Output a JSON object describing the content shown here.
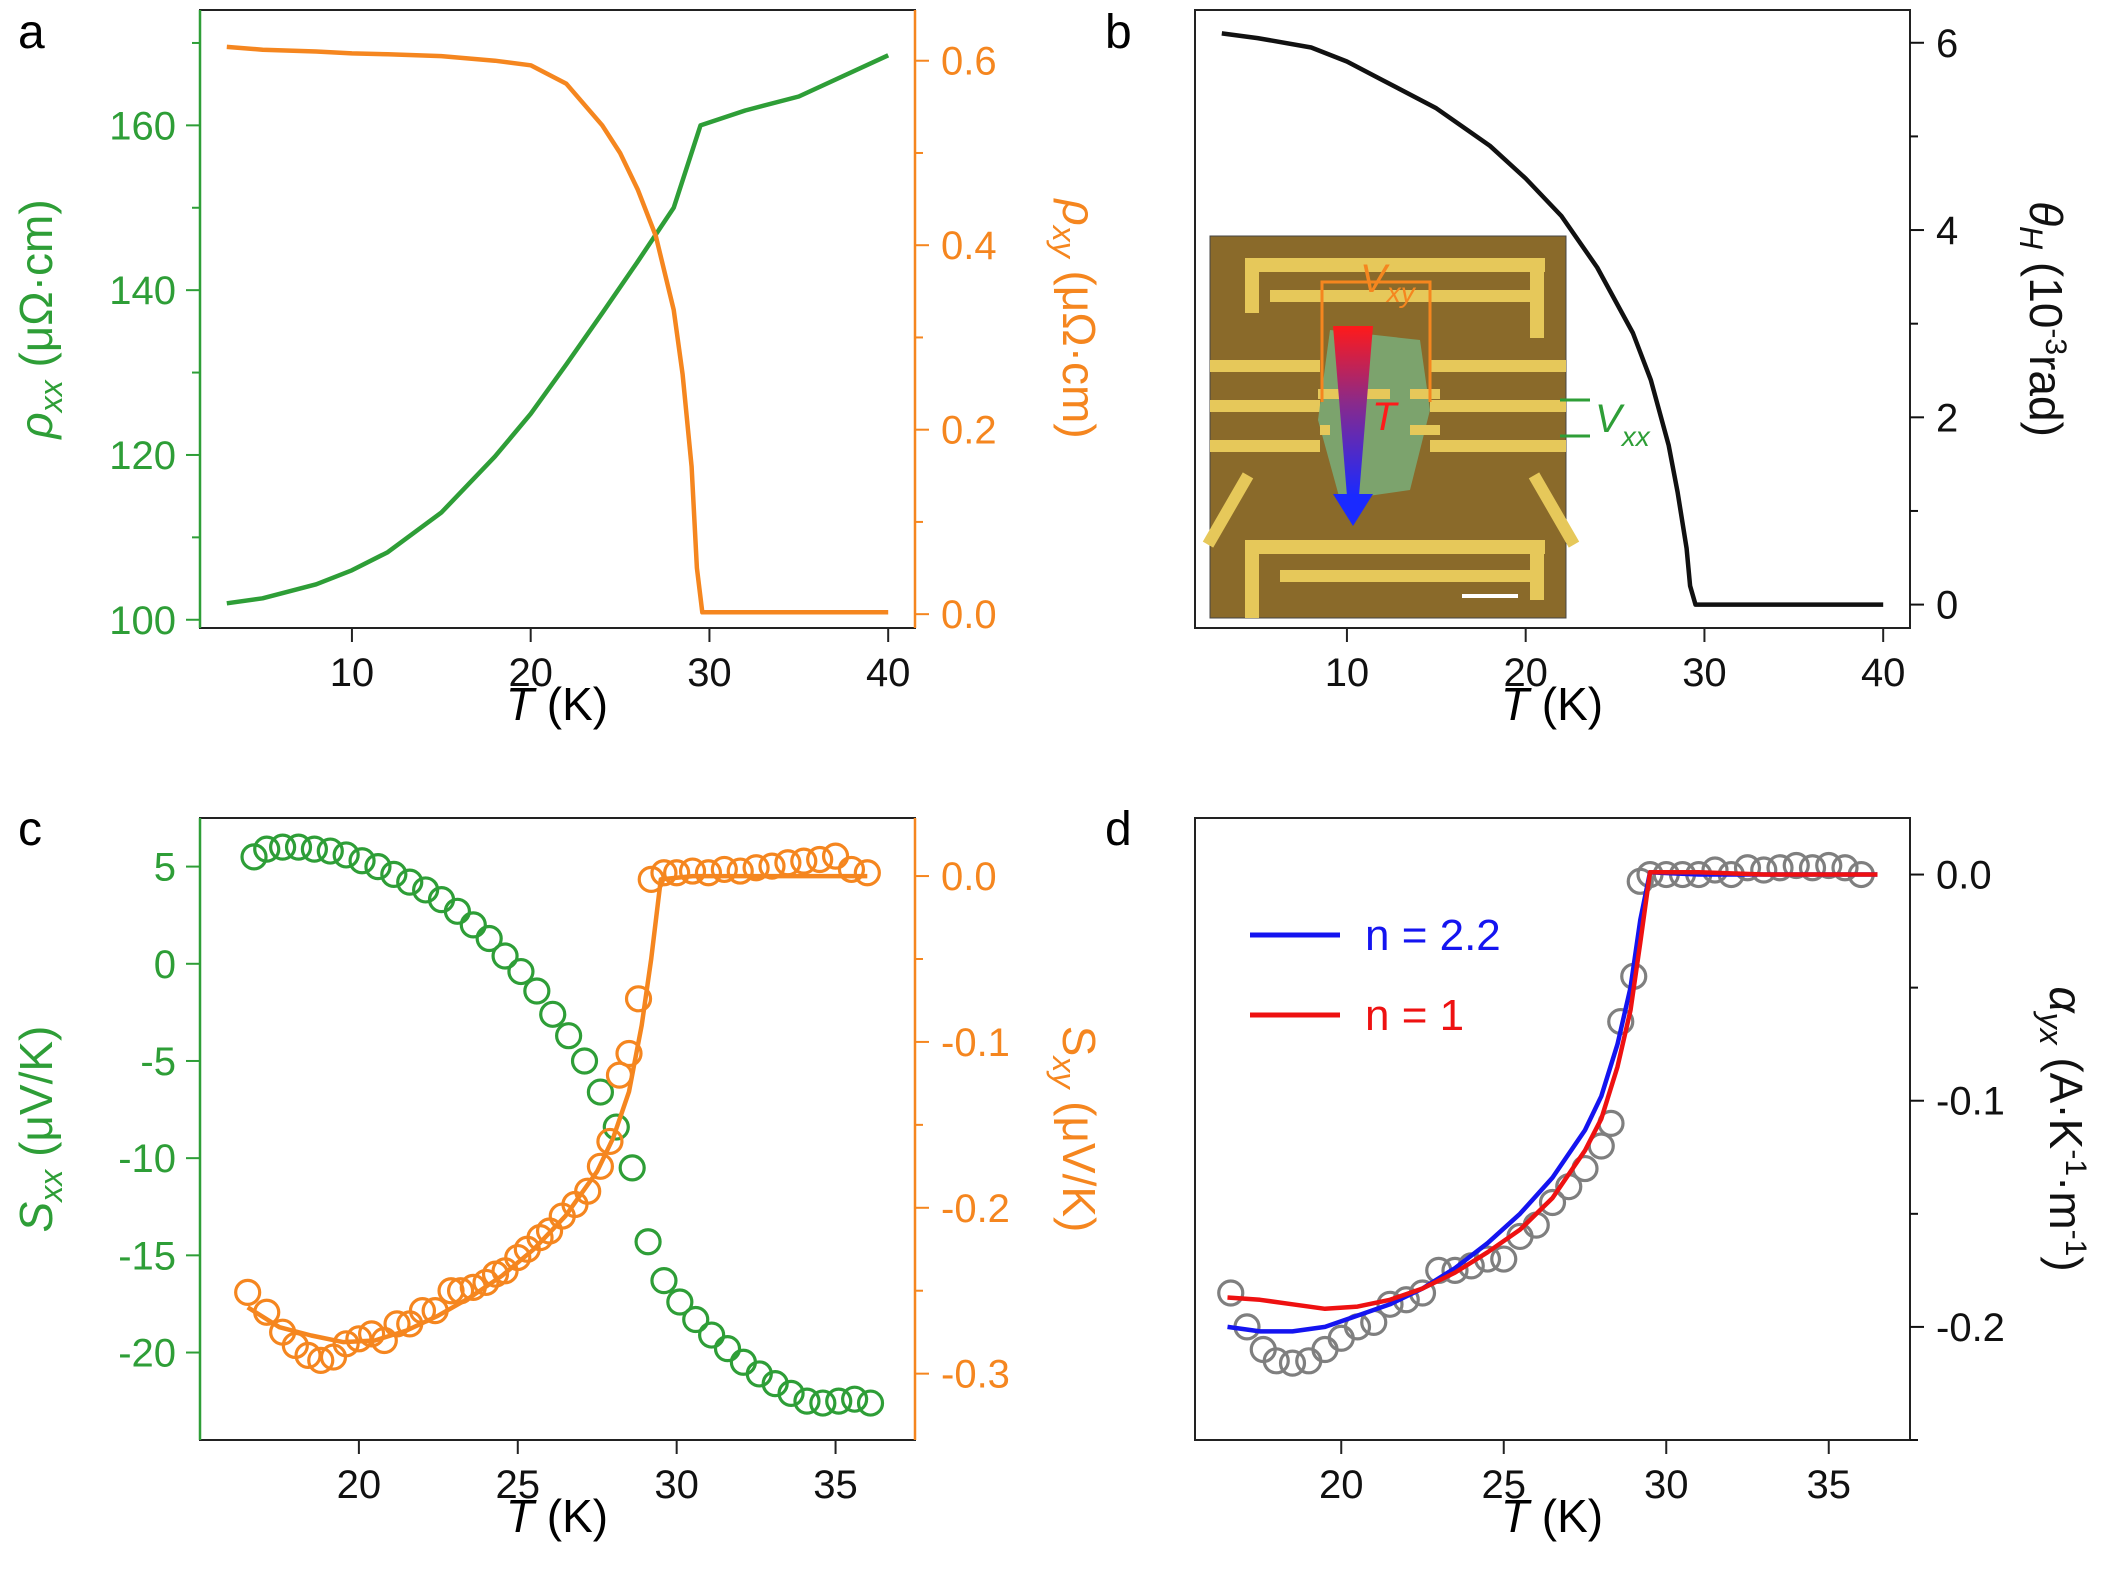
{
  "figure": {
    "panel_labels": [
      "a",
      "b",
      "c",
      "d"
    ]
  },
  "colors": {
    "green": "#2e9e37",
    "orange": "#f5861f",
    "black": "#111111",
    "blue": "#1414f0",
    "red": "#ee1111",
    "gray": "#7f7f7f"
  },
  "chart_data": [
    {
      "panel": "a",
      "type": "line",
      "title": "",
      "x": {
        "label_italic": "T",
        "label_rest": " (K)",
        "lim": [
          1.5,
          41.5
        ],
        "ticks": [
          10,
          20,
          30,
          40
        ]
      },
      "left_axis": {
        "label": "ρxx (μΩ·cm)",
        "lim": [
          99,
          174
        ],
        "ticks": [
          100,
          120,
          140,
          160
        ],
        "tick_labels": [
          "100",
          "120",
          "140",
          "160"
        ],
        "minor": [
          110,
          130,
          150,
          170
        ]
      },
      "right_axis": {
        "label": "ρxy (μΩ·cm)",
        "lim": [
          -0.015,
          0.655
        ],
        "ticks": [
          0.0,
          0.2,
          0.4,
          0.6
        ],
        "tick_labels": [
          "0.0",
          "0.2",
          "0.4",
          "0.6"
        ],
        "minor": [
          0.1,
          0.3,
          0.5
        ]
      },
      "series": [
        {
          "name": "ρxx",
          "axis": "left",
          "color": "#2e9e37",
          "x": [
            3,
            5,
            8,
            10,
            12,
            15,
            18,
            20,
            22,
            24,
            26,
            28,
            29.5,
            32,
            35,
            40
          ],
          "y": [
            102,
            102.6,
            104.3,
            106,
            108.2,
            113,
            119.8,
            125,
            131,
            137.2,
            143.5,
            150,
            160,
            161.8,
            163.5,
            168.5
          ]
        },
        {
          "name": "ρxy",
          "axis": "right",
          "color": "#f5861f",
          "x": [
            3,
            5,
            8,
            10,
            12,
            15,
            18,
            20,
            22,
            24,
            25,
            26,
            27,
            28,
            28.5,
            29,
            29.3,
            29.6,
            32,
            35,
            40
          ],
          "y": [
            0.615,
            0.612,
            0.61,
            0.608,
            0.607,
            0.605,
            0.6,
            0.595,
            0.575,
            0.53,
            0.5,
            0.46,
            0.41,
            0.33,
            0.26,
            0.16,
            0.05,
            0.002,
            0.002,
            0.002,
            0.002
          ]
        }
      ]
    },
    {
      "panel": "b",
      "type": "line",
      "title": "",
      "x": {
        "label_italic": "T",
        "label_rest": " (K)",
        "lim": [
          1.5,
          41.5
        ],
        "ticks": [
          10,
          20,
          30,
          40
        ]
      },
      "right_axis": {
        "label": "θH (10-3rad)",
        "lim": [
          -0.25,
          6.35
        ],
        "ticks": [
          0,
          2,
          4,
          6
        ],
        "tick_labels": [
          "0",
          "2",
          "4",
          "6"
        ],
        "minor": [
          1,
          3,
          5
        ]
      },
      "series": [
        {
          "name": "θH",
          "axis": "right",
          "color": "#111111",
          "x": [
            3,
            5,
            8,
            10,
            12,
            15,
            18,
            20,
            22,
            24,
            26,
            27,
            28,
            28.5,
            29,
            29.2,
            29.5,
            32,
            35,
            40
          ],
          "y": [
            6.1,
            6.05,
            5.95,
            5.8,
            5.6,
            5.3,
            4.9,
            4.55,
            4.15,
            3.6,
            2.9,
            2.4,
            1.7,
            1.2,
            0.6,
            0.2,
            0.0,
            0.0,
            0.0,
            0.0
          ]
        }
      ],
      "inset": {
        "vxy": "V",
        "vxy_sub": "xy",
        "vxx": "V",
        "vxx_sub": "xx",
        "t": "T"
      }
    },
    {
      "panel": "c",
      "type": "scatter",
      "title": "",
      "x": {
        "label_italic": "T",
        "label_rest": " (K)",
        "lim": [
          15,
          37.5
        ],
        "ticks": [
          20,
          25,
          30,
          35
        ]
      },
      "left_axis": {
        "label": "Sxx (μV/K)",
        "lim": [
          -24.5,
          7.5
        ],
        "ticks": [
          -20,
          -15,
          -10,
          -5,
          0,
          5
        ],
        "tick_labels": [
          "-20",
          "-15",
          "-10",
          "-5",
          "0",
          "5"
        ],
        "minor": []
      },
      "right_axis": {
        "label": "Sxy (μV/K)",
        "lim": [
          -0.34,
          0.035
        ],
        "ticks": [
          -0.3,
          -0.2,
          -0.1,
          0.0
        ],
        "tick_labels": [
          "-0.3",
          "-0.2",
          "-0.1",
          "0.0"
        ],
        "minor": [
          -0.25,
          -0.15,
          -0.05
        ]
      },
      "series": [
        {
          "name": "Sxx",
          "axis": "left",
          "marker": "circle",
          "color": "#2e9e37",
          "x": [
            16.7,
            17.1,
            17.6,
            18.1,
            18.6,
            19.1,
            19.6,
            20.1,
            20.6,
            21.1,
            21.6,
            22.1,
            22.6,
            23.1,
            23.6,
            24.1,
            24.6,
            25.1,
            25.6,
            26.1,
            26.6,
            27.1,
            27.6,
            28.1,
            28.6,
            29.1,
            29.6,
            30.1,
            30.6,
            31.1,
            31.6,
            32.1,
            32.6,
            33.1,
            33.6,
            34.1,
            34.6,
            35.1,
            35.6,
            36.1
          ],
          "y": [
            5.5,
            5.9,
            6.0,
            6.0,
            5.9,
            5.8,
            5.6,
            5.3,
            5.0,
            4.6,
            4.2,
            3.8,
            3.3,
            2.7,
            2.0,
            1.3,
            0.4,
            -0.4,
            -1.4,
            -2.6,
            -3.7,
            -5.0,
            -6.6,
            -8.4,
            -10.5,
            -14.3,
            -16.3,
            -17.4,
            -18.3,
            -19.1,
            -19.8,
            -20.5,
            -21.1,
            -21.6,
            -22.1,
            -22.5,
            -22.6,
            -22.5,
            -22.4,
            -22.6
          ]
        },
        {
          "name": "Sxy",
          "axis": "right",
          "marker": "circle",
          "color": "#f5861f",
          "x": [
            16.5,
            17.1,
            17.6,
            18.0,
            18.4,
            18.8,
            19.2,
            19.6,
            20.0,
            20.4,
            20.8,
            21.2,
            21.6,
            22.0,
            22.4,
            22.9,
            23.2,
            23.6,
            24.0,
            24.3,
            24.6,
            25.0,
            25.3,
            25.7,
            26.0,
            26.4,
            26.8,
            27.2,
            27.6,
            27.9,
            28.2,
            28.5,
            28.8,
            29.2,
            29.6,
            30.0,
            30.5,
            31.0,
            31.5,
            32.0,
            32.5,
            33.0,
            33.5,
            34.0,
            34.5,
            35.0,
            35.5,
            36.0
          ],
          "y": [
            -0.251,
            -0.263,
            -0.275,
            -0.283,
            -0.289,
            -0.292,
            -0.29,
            -0.282,
            -0.279,
            -0.276,
            -0.28,
            -0.27,
            -0.27,
            -0.262,
            -0.262,
            -0.25,
            -0.25,
            -0.248,
            -0.245,
            -0.24,
            -0.238,
            -0.23,
            -0.225,
            -0.218,
            -0.214,
            -0.205,
            -0.198,
            -0.19,
            -0.175,
            -0.16,
            -0.12,
            -0.107,
            -0.074,
            -0.002,
            0.002,
            0.002,
            0.003,
            0.002,
            0.004,
            0.003,
            0.005,
            0.006,
            0.008,
            0.009,
            0.01,
            0.012,
            0.004,
            0.002
          ]
        },
        {
          "name": "Sxy fit",
          "axis": "right",
          "marker": "line",
          "color": "#f5861f",
          "x": [
            16.5,
            17.5,
            18.5,
            19.5,
            20.5,
            21.5,
            22.5,
            23.5,
            24.5,
            25.5,
            26.5,
            27.5,
            28.0,
            28.5,
            28.9,
            29.2,
            29.5,
            30.5,
            32.0,
            34.0,
            36.0
          ],
          "y": [
            -0.26,
            -0.272,
            -0.277,
            -0.281,
            -0.28,
            -0.274,
            -0.265,
            -0.254,
            -0.241,
            -0.225,
            -0.205,
            -0.178,
            -0.158,
            -0.13,
            -0.09,
            -0.05,
            -0.002,
            0.0,
            0.0,
            0.0,
            0.0
          ]
        }
      ]
    },
    {
      "panel": "d",
      "type": "scatter",
      "title": "",
      "x": {
        "label_italic": "T",
        "label_rest": " (K)",
        "lim": [
          15.5,
          37.5
        ],
        "ticks": [
          20,
          25,
          30,
          35
        ]
      },
      "right_axis": {
        "label": "αyx (A·K-1·m-1)",
        "lim": [
          -0.25,
          0.025
        ],
        "ticks": [
          -0.2,
          -0.1,
          0.0
        ],
        "tick_labels": [
          "-0.2",
          "-0.1",
          "0.0"
        ],
        "minor": [
          -0.25,
          -0.15,
          -0.05
        ]
      },
      "legend": [
        "n = 2.2",
        "n = 1"
      ],
      "series": [
        {
          "name": "αyx",
          "axis": "right",
          "marker": "circle",
          "color": "#7f7f7f",
          "x": [
            16.6,
            17.1,
            17.6,
            18.0,
            18.5,
            19.0,
            19.5,
            20.0,
            20.5,
            21.0,
            21.5,
            22.0,
            22.5,
            23.0,
            23.5,
            24.0,
            24.5,
            25.0,
            25.5,
            26.0,
            26.5,
            27.0,
            27.5,
            28.0,
            28.3,
            28.6,
            29.0,
            29.2,
            29.5,
            30.0,
            30.5,
            31.0,
            31.5,
            32.0,
            32.5,
            33.0,
            33.5,
            34.0,
            34.5,
            35.0,
            35.5,
            36.0
          ],
          "y": [
            -0.185,
            -0.2,
            -0.21,
            -0.215,
            -0.216,
            -0.215,
            -0.21,
            -0.205,
            -0.2,
            -0.198,
            -0.19,
            -0.188,
            -0.185,
            -0.175,
            -0.175,
            -0.173,
            -0.17,
            -0.17,
            -0.16,
            -0.155,
            -0.145,
            -0.138,
            -0.13,
            -0.12,
            -0.11,
            -0.065,
            -0.045,
            -0.003,
            0.0,
            0.0,
            0.0,
            0.0,
            0.002,
            0.0,
            0.003,
            0.002,
            0.003,
            0.004,
            0.003,
            0.004,
            0.003,
            0.0
          ]
        },
        {
          "name": "n = 2.2",
          "axis": "right",
          "marker": "line",
          "color": "#1414f0",
          "x": [
            16.5,
            17.5,
            18.5,
            19.5,
            20.5,
            21.5,
            22.5,
            23.5,
            24.5,
            25.5,
            26.5,
            27.5,
            28.0,
            28.5,
            28.9,
            29.2,
            29.5,
            31.0,
            33.0,
            35.0,
            36.5
          ],
          "y": [
            -0.2,
            -0.202,
            -0.202,
            -0.2,
            -0.195,
            -0.19,
            -0.183,
            -0.174,
            -0.163,
            -0.15,
            -0.134,
            -0.113,
            -0.098,
            -0.075,
            -0.05,
            -0.02,
            0.001,
            0.0,
            0.0,
            0.0,
            0.0
          ]
        },
        {
          "name": "n = 1",
          "axis": "right",
          "marker": "line",
          "color": "#ee1111",
          "x": [
            16.5,
            17.5,
            18.5,
            19.5,
            20.5,
            21.5,
            22.5,
            23.5,
            24.5,
            25.5,
            26.5,
            27.5,
            28.0,
            28.5,
            28.9,
            29.2,
            29.5,
            31.0,
            33.0,
            35.0,
            36.5
          ],
          "y": [
            -0.187,
            -0.188,
            -0.19,
            -0.192,
            -0.191,
            -0.188,
            -0.183,
            -0.176,
            -0.167,
            -0.157,
            -0.143,
            -0.122,
            -0.108,
            -0.085,
            -0.06,
            -0.03,
            0.001,
            0.001,
            0.0,
            0.0,
            0.0
          ]
        }
      ]
    }
  ]
}
